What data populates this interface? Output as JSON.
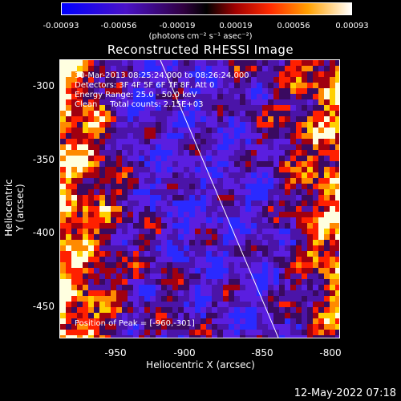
{
  "colorbar": {
    "ticks": [
      "-0.00093",
      "-0.00056",
      "-0.00019",
      "0.00019",
      "0.00056",
      "0.00093"
    ],
    "units": "(photons cm⁻² s⁻¹ asec⁻²)"
  },
  "title": "Reconstructed RHESSI Image",
  "info": {
    "line1": "30-Mar-2013 08:25:24.000 to 08:26:24.000",
    "line2": "Detectors: 3F 4F 5F 6F 7F 8F, Att 0",
    "line3": "Energy Range: 25.0 - 50.0 keV",
    "line4": "Clean     Total counts: 2.15E+03",
    "peak": "Position of Peak = [-960,-301]"
  },
  "axes": {
    "xlabel": "Heliocentric X (arcsec)",
    "ylabel": "Heliocentric Y (arcsec)",
    "xticks": [
      "-950",
      "-900",
      "-850",
      "-800"
    ],
    "yticks": [
      "-300",
      "-350",
      "-400",
      "-450"
    ]
  },
  "footer": "12-May-2022 07:18",
  "colors": {
    "text": "#ffffff",
    "background": "#000000"
  }
}
